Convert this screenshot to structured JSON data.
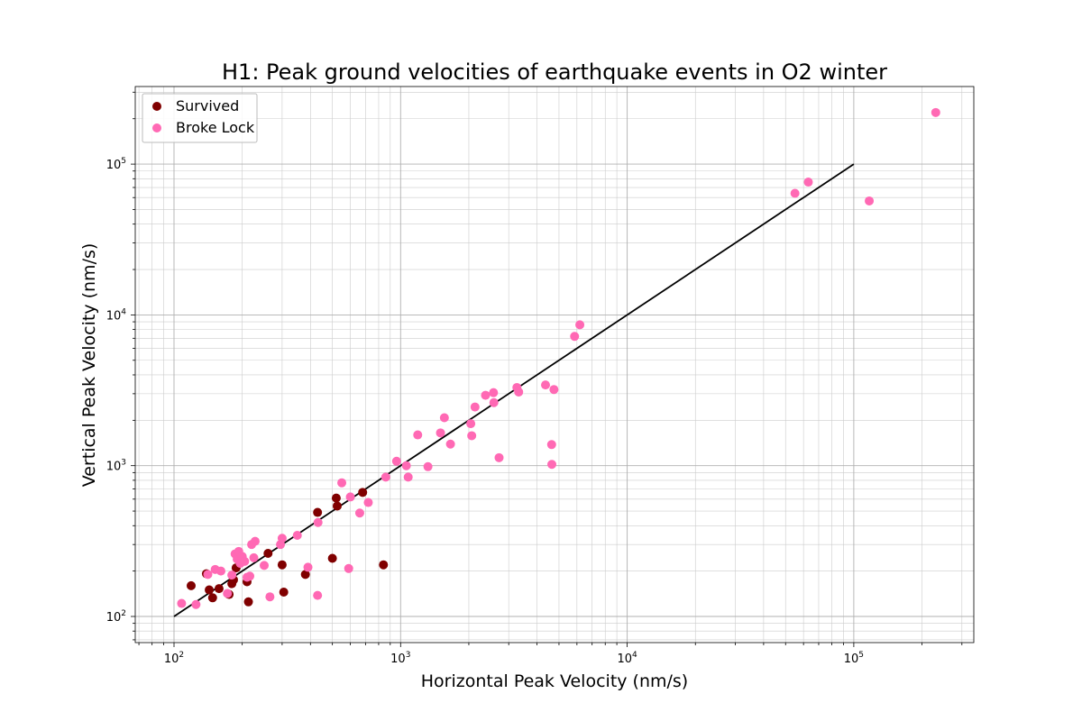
{
  "chart_data": {
    "type": "scatter",
    "title": "H1: Peak ground velocities of earthquake events in O2 winter",
    "xlabel": "Horizontal Peak Velocity (nm/s)",
    "ylabel": "Vertical Peak Velocity (nm/s)",
    "x_scale": "log",
    "y_scale": "log",
    "xlim": [
      70,
      350000
    ],
    "ylim": [
      70,
      320000
    ],
    "x_ticks": [
      {
        "base": "10",
        "exp": "2",
        "value": 100
      },
      {
        "base": "10",
        "exp": "3",
        "value": 1000
      },
      {
        "base": "10",
        "exp": "4",
        "value": 10000
      },
      {
        "base": "10",
        "exp": "5",
        "value": 100000
      }
    ],
    "y_ticks": [
      {
        "base": "10",
        "exp": "2",
        "value": 100
      },
      {
        "base": "10",
        "exp": "3",
        "value": 1000
      },
      {
        "base": "10",
        "exp": "4",
        "value": 10000
      },
      {
        "base": "10",
        "exp": "5",
        "value": 100000
      }
    ],
    "grid": true,
    "legend_position": "top-left",
    "reference_line": {
      "x": [
        100,
        100000
      ],
      "y": [
        100,
        100000
      ],
      "color": "#000000"
    },
    "series": [
      {
        "name": "Survived",
        "color": "#800000",
        "points": [
          [
            119,
            160
          ],
          [
            139,
            192
          ],
          [
            143,
            150
          ],
          [
            148,
            133
          ],
          [
            158,
            153
          ],
          [
            175,
            140
          ],
          [
            180,
            165
          ],
          [
            183,
            175
          ],
          [
            188,
            210
          ],
          [
            210,
            170
          ],
          [
            213,
            125
          ],
          [
            260,
            262
          ],
          [
            300,
            220
          ],
          [
            305,
            145
          ],
          [
            380,
            190
          ],
          [
            430,
            490
          ],
          [
            500,
            243
          ],
          [
            520,
            610
          ],
          [
            525,
            540
          ],
          [
            680,
            665
          ],
          [
            840,
            220
          ]
        ]
      },
      {
        "name": "Broke Lock",
        "color": "#FF69B4",
        "points": [
          [
            108,
            122
          ],
          [
            125,
            120
          ],
          [
            141,
            190
          ],
          [
            152,
            205
          ],
          [
            161,
            200
          ],
          [
            172,
            142
          ],
          [
            180,
            188
          ],
          [
            186,
            260
          ],
          [
            190,
            240
          ],
          [
            193,
            270
          ],
          [
            196,
            225
          ],
          [
            200,
            250
          ],
          [
            205,
            232
          ],
          [
            210,
            182
          ],
          [
            216,
            185
          ],
          [
            220,
            300
          ],
          [
            225,
            245
          ],
          [
            228,
            315
          ],
          [
            250,
            218
          ],
          [
            265,
            135
          ],
          [
            295,
            300
          ],
          [
            300,
            330
          ],
          [
            350,
            345
          ],
          [
            390,
            212
          ],
          [
            430,
            138
          ],
          [
            432,
            420
          ],
          [
            550,
            770
          ],
          [
            590,
            208
          ],
          [
            600,
            620
          ],
          [
            660,
            485
          ],
          [
            720,
            570
          ],
          [
            860,
            840
          ],
          [
            960,
            1070
          ],
          [
            1060,
            1000
          ],
          [
            1080,
            840
          ],
          [
            1190,
            1600
          ],
          [
            1320,
            985
          ],
          [
            1500,
            1650
          ],
          [
            1560,
            2080
          ],
          [
            1660,
            1390
          ],
          [
            2040,
            1900
          ],
          [
            2060,
            1580
          ],
          [
            2130,
            2450
          ],
          [
            2370,
            2930
          ],
          [
            2570,
            3050
          ],
          [
            2580,
            2620
          ],
          [
            2720,
            1130
          ],
          [
            3260,
            3300
          ],
          [
            3320,
            3080
          ],
          [
            4360,
            3430
          ],
          [
            4640,
            1380
          ],
          [
            4650,
            1020
          ],
          [
            4750,
            3200
          ],
          [
            5860,
            7200
          ],
          [
            6180,
            8600
          ],
          [
            55000,
            64000
          ],
          [
            63000,
            76000
          ],
          [
            117000,
            57000
          ],
          [
            230000,
            220000
          ]
        ]
      }
    ]
  }
}
